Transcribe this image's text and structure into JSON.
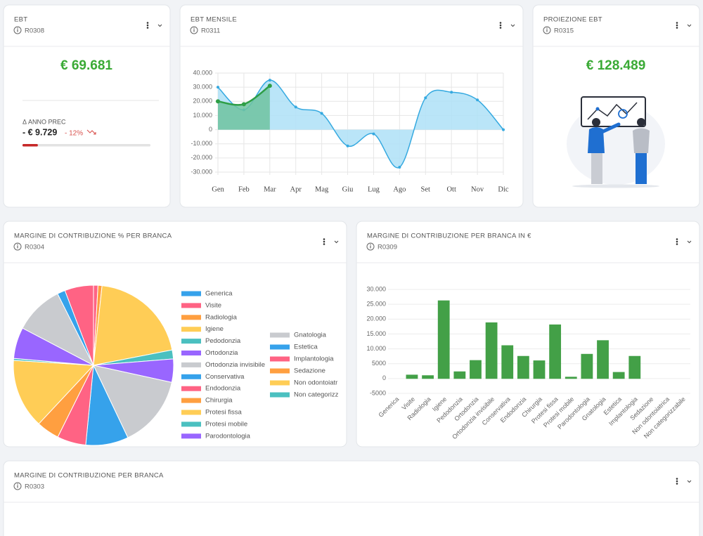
{
  "kpi": {
    "title": "EBT",
    "code": "R0308",
    "value": "€ 69.681",
    "delta_label": "Δ ANNO PREC",
    "delta_value": "- € 9.729",
    "delta_pct": {
      "value": -12,
      "label": "- 12%"
    }
  },
  "projection": {
    "title": "PROIEZIONE EBT",
    "code": "R0315",
    "value": "€ 128.489"
  },
  "table_card": {
    "title": "MARGINE DI CONTRIBUZIONE PER BRANCA",
    "code": "R0303"
  },
  "chart_data": [
    {
      "type": "line",
      "title": "EBT MENSILE",
      "code": "R0311",
      "categories": [
        "Gen",
        "Feb",
        "Mar",
        "Apr",
        "Mag",
        "Giu",
        "Lug",
        "Ago",
        "Set",
        "Ott",
        "Nov",
        "Dic"
      ],
      "series": [
        {
          "color": "#35a9e0",
          "fill": "#aee0f7",
          "values": [
            30000,
            14000,
            35000,
            16000,
            11500,
            -11500,
            -3000,
            -26500,
            22500,
            26500,
            21000,
            0
          ]
        },
        {
          "color": "#2e9e46",
          "fill": "#6fc3a0",
          "values": [
            20000,
            18000,
            31000,
            null,
            null,
            null,
            null,
            null,
            null,
            null,
            null,
            null
          ]
        }
      ],
      "ylim": [
        -30000,
        40000
      ],
      "yticks": [
        {
          "value": -30000,
          "label": "-30.000"
        },
        {
          "value": -20000,
          "label": "-20.000"
        },
        {
          "value": -10000,
          "label": "-10.000"
        },
        0,
        {
          "value": 10000,
          "label": "10.000"
        },
        {
          "value": 20000,
          "label": "20.000"
        },
        {
          "value": 30000,
          "label": "30.000"
        },
        {
          "value": 40000,
          "label": "40.000"
        }
      ],
      "grid": true
    },
    {
      "type": "pie",
      "title": "MARGINE DI CONTRIBUZIONE % PER BRANCA",
      "code": "R0304",
      "categories": [
        "Generica",
        "Visite",
        "Radiologia",
        "Igiene",
        "Pedodonzia",
        "Ortodonzia",
        "Ortodonzia invisibile",
        "Conservativa",
        "Endodonzia",
        "Chirurgia",
        "Protesi fissa",
        "Protesi mobile",
        "Parodontologia",
        "Gnatologia",
        "Estetica",
        "Implantologia",
        "Sedazione",
        "Non odontoiatrica",
        "Non categorizzabile"
      ],
      "values": [
        0,
        0.9,
        0.8,
        20.2,
        1.8,
        4.7,
        14.5,
        8.6,
        5.8,
        4.6,
        14.0,
        0.4,
        6.3,
        9.9,
        1.6,
        5.8,
        0,
        0,
        0
      ],
      "colors": [
        "#36a2eb",
        "#ff6384",
        "#ff9f40",
        "#ffcd56",
        "#4bc0c0",
        "#9966ff",
        "#c9cbcf",
        "#36a2eb",
        "#ff6384",
        "#ff9f40",
        "#ffcd56",
        "#4bc0c0",
        "#9966ff",
        "#c9cbcf",
        "#36a2eb",
        "#ff6384",
        "#ff9f40",
        "#ffcd56",
        "#4bc0c0"
      ]
    },
    {
      "type": "bar",
      "title": "MARGINE DI CONTRIBUZIONE PER BRANCA IN €",
      "code": "R0309",
      "categories": [
        "Generica",
        "Visite",
        "Radiologia",
        "Igiene",
        "Pedodonzia",
        "Ortodonzia",
        "Ortodonzia invisibile",
        "Conservativa",
        "Endodonzia",
        "Chirurgia",
        "Protesi fissa",
        "Protesi mobile",
        "Parodontologia",
        "Gnatologia",
        "Estetica",
        "Implantologia",
        "Sedazione",
        "Non odontoiatrica",
        "Non categorizzabile"
      ],
      "values": [
        0,
        1200,
        1000,
        26200,
        2300,
        6100,
        18800,
        11100,
        7500,
        6000,
        18100,
        500,
        8200,
        12800,
        2100,
        7500,
        0,
        0,
        0
      ],
      "color": "#43a047",
      "ylim": [
        -5000,
        30000
      ],
      "yticks": [
        -5000,
        0,
        5000,
        {
          "value": 10000,
          "label": "10.000"
        },
        {
          "value": 15000,
          "label": "15.000"
        },
        {
          "value": 20000,
          "label": "20.000"
        },
        {
          "value": 25000,
          "label": "25.000"
        },
        {
          "value": 30000,
          "label": "30.000"
        }
      ],
      "grid": true
    }
  ]
}
